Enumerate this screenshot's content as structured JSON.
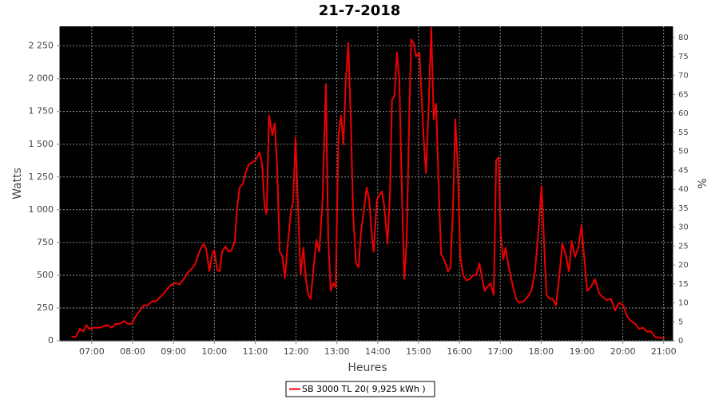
{
  "chart_data": {
    "type": "line",
    "title": "21-7-2018",
    "xlabel": "Heures",
    "ylabel": "Watts",
    "y2label": "%",
    "legend": "bottom",
    "grid": true,
    "x": [
      6.51,
      6.61,
      6.71,
      6.79,
      6.87,
      6.94,
      7.06,
      7.2,
      7.39,
      7.49,
      7.59,
      7.69,
      7.78,
      7.88,
      7.98,
      8.08,
      8.18,
      8.27,
      8.37,
      8.47,
      8.57,
      8.66,
      8.76,
      8.86,
      8.96,
      9.06,
      9.15,
      9.25,
      9.35,
      9.45,
      9.54,
      9.6,
      9.68,
      9.74,
      9.8,
      9.88,
      9.94,
      10.0,
      10.07,
      10.13,
      10.19,
      10.27,
      10.35,
      10.42,
      10.5,
      10.56,
      10.62,
      10.7,
      10.77,
      10.85,
      10.93,
      11.01,
      11.11,
      11.17,
      11.23,
      11.28,
      11.34,
      11.42,
      11.48,
      11.54,
      11.6,
      11.66,
      11.73,
      11.79,
      11.87,
      11.93,
      11.99,
      12.05,
      12.11,
      12.18,
      12.24,
      12.3,
      12.36,
      12.42,
      12.5,
      12.57,
      12.65,
      12.73,
      12.79,
      12.85,
      12.91,
      12.97,
      13.04,
      13.1,
      13.16,
      13.22,
      13.28,
      13.34,
      13.4,
      13.47,
      13.53,
      13.59,
      13.67,
      13.73,
      13.79,
      13.85,
      13.9,
      13.98,
      14.04,
      14.1,
      14.16,
      14.24,
      14.3,
      14.35,
      14.41,
      14.47,
      14.53,
      14.59,
      14.65,
      14.71,
      14.77,
      14.82,
      14.88,
      14.94,
      15.02,
      15.12,
      15.18,
      15.25,
      15.31,
      15.37,
      15.43,
      15.49,
      15.55,
      15.61,
      15.66,
      15.72,
      15.78,
      15.84,
      15.9,
      15.96,
      16.02,
      16.09,
      16.17,
      16.25,
      16.33,
      16.41,
      16.49,
      16.56,
      16.62,
      16.68,
      16.76,
      16.84,
      16.9,
      16.96,
      17.01,
      17.07,
      17.13,
      17.19,
      17.25,
      17.31,
      17.39,
      17.46,
      17.56,
      17.66,
      17.76,
      17.85,
      17.95,
      18.01,
      18.07,
      18.13,
      18.21,
      18.28,
      18.36,
      18.44,
      18.52,
      18.6,
      18.68,
      18.75,
      18.83,
      18.91,
      18.99,
      19.05,
      19.13,
      19.22,
      19.32,
      19.42,
      19.52,
      19.61,
      19.71,
      19.81,
      19.91,
      20.01,
      20.1,
      20.2,
      20.3,
      20.4,
      20.49,
      20.59,
      20.69,
      20.79,
      20.99,
      21.02
    ],
    "series": [
      {
        "name": "SB 3000 TL 20( 9,925 kWh )",
        "color": "#ee0000",
        "values": [
          30,
          30,
          90,
          70,
          120,
          90,
          100,
          100,
          120,
          100,
          130,
          130,
          150,
          130,
          130,
          190,
          230,
          270,
          270,
          300,
          300,
          330,
          360,
          400,
          430,
          440,
          430,
          470,
          520,
          550,
          590,
          650,
          710,
          740,
          700,
          530,
          650,
          690,
          540,
          530,
          680,
          720,
          680,
          690,
          760,
          1020,
          1170,
          1200,
          1290,
          1350,
          1360,
          1380,
          1440,
          1350,
          1020,
          970,
          1720,
          1570,
          1660,
          1310,
          680,
          650,
          480,
          710,
          970,
          1070,
          1550,
          1020,
          500,
          710,
          470,
          350,
          320,
          530,
          770,
          680,
          1080,
          1960,
          770,
          380,
          440,
          410,
          1570,
          1720,
          1500,
          1990,
          2270,
          1690,
          960,
          590,
          560,
          830,
          1020,
          1170,
          1080,
          830,
          680,
          1080,
          1110,
          1140,
          1030,
          740,
          1140,
          1840,
          1870,
          2200,
          1990,
          1140,
          470,
          770,
          1690,
          2300,
          2270,
          2170,
          2200,
          1570,
          1280,
          1810,
          2390,
          1690,
          1810,
          1200,
          660,
          630,
          590,
          530,
          560,
          990,
          1690,
          1320,
          650,
          500,
          460,
          470,
          500,
          500,
          590,
          470,
          380,
          410,
          440,
          350,
          1380,
          1400,
          830,
          620,
          710,
          590,
          500,
          410,
          320,
          290,
          300,
          330,
          380,
          530,
          900,
          1180,
          770,
          350,
          320,
          320,
          270,
          470,
          740,
          660,
          530,
          760,
          640,
          710,
          880,
          650,
          380,
          410,
          470,
          360,
          330,
          310,
          320,
          230,
          290,
          270,
          190,
          150,
          130,
          90,
          100,
          70,
          70,
          30,
          20,
          20
        ]
      }
    ],
    "xlim": [
      6.22,
      21.22
    ],
    "xticks": [
      {
        "value": 7,
        "label": "07:00"
      },
      {
        "value": 8,
        "label": "08:00"
      },
      {
        "value": 9,
        "label": "09:00"
      },
      {
        "value": 10,
        "label": "10:00"
      },
      {
        "value": 11,
        "label": "11:00"
      },
      {
        "value": 12,
        "label": "12:00"
      },
      {
        "value": 13,
        "label": "13:00"
      },
      {
        "value": 14,
        "label": "14:00"
      },
      {
        "value": 15,
        "label": "15:00"
      },
      {
        "value": 16,
        "label": "16:00"
      },
      {
        "value": 17,
        "label": "17:00"
      },
      {
        "value": 18,
        "label": "18:00"
      },
      {
        "value": 19,
        "label": "19:00"
      },
      {
        "value": 20,
        "label": "20:00"
      },
      {
        "value": 21,
        "label": "21:00"
      }
    ],
    "ylim": [
      0,
      2400
    ],
    "yticks": [
      0,
      250,
      500,
      750,
      {
        "value": 1000,
        "label": "1 000"
      },
      {
        "value": 1250,
        "label": "1 250"
      },
      {
        "value": 1500,
        "label": "1 500"
      },
      {
        "value": 1750,
        "label": "1 750"
      },
      {
        "value": 2000,
        "label": "2 000"
      },
      {
        "value": 2250,
        "label": "2 250"
      }
    ],
    "y2lim": [
      0,
      83
    ],
    "y2ticks": [
      0,
      5,
      10,
      15,
      20,
      25,
      30,
      35,
      40,
      45,
      50,
      55,
      60,
      65,
      70,
      75,
      80
    ]
  }
}
